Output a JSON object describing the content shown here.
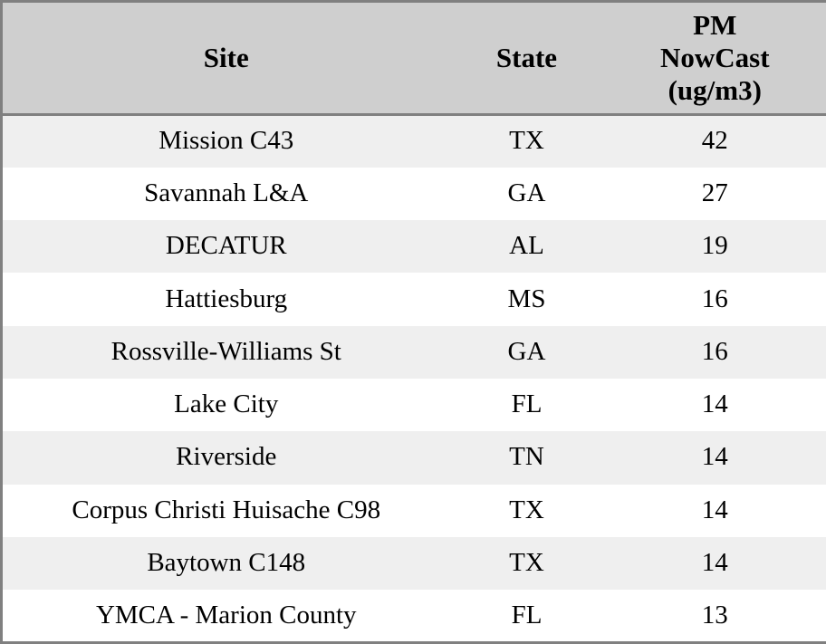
{
  "chart_data": {
    "type": "table",
    "columns": [
      "Site",
      "State",
      "PM NowCast (ug/m3)"
    ],
    "rows": [
      [
        "Mission C43",
        "TX",
        42
      ],
      [
        "Savannah L&A",
        "GA",
        27
      ],
      [
        "DECATUR",
        "AL",
        19
      ],
      [
        "Hattiesburg",
        "MS",
        16
      ],
      [
        "Rossville-Williams St",
        "GA",
        16
      ],
      [
        "Lake City",
        "FL",
        14
      ],
      [
        "Riverside",
        "TN",
        14
      ],
      [
        "Corpus Christi Huisache C98",
        "TX",
        14
      ],
      [
        "Baytown C148",
        "TX",
        14
      ],
      [
        "YMCA - Marion County",
        "FL",
        13
      ]
    ],
    "layout": {
      "grid": "horizontal-stripes-only",
      "row_striping": "alternating"
    }
  },
  "header": {
    "site": "Site",
    "state": "State",
    "pm_lines": [
      "PM",
      "NowCast",
      "(ug/m3)"
    ]
  },
  "colors": {
    "header_bg": "#cfcfcf",
    "stripe_row_bg": "#efefef",
    "plain_row_bg": "#ffffff",
    "border": "#808080",
    "text": "#000000"
  }
}
